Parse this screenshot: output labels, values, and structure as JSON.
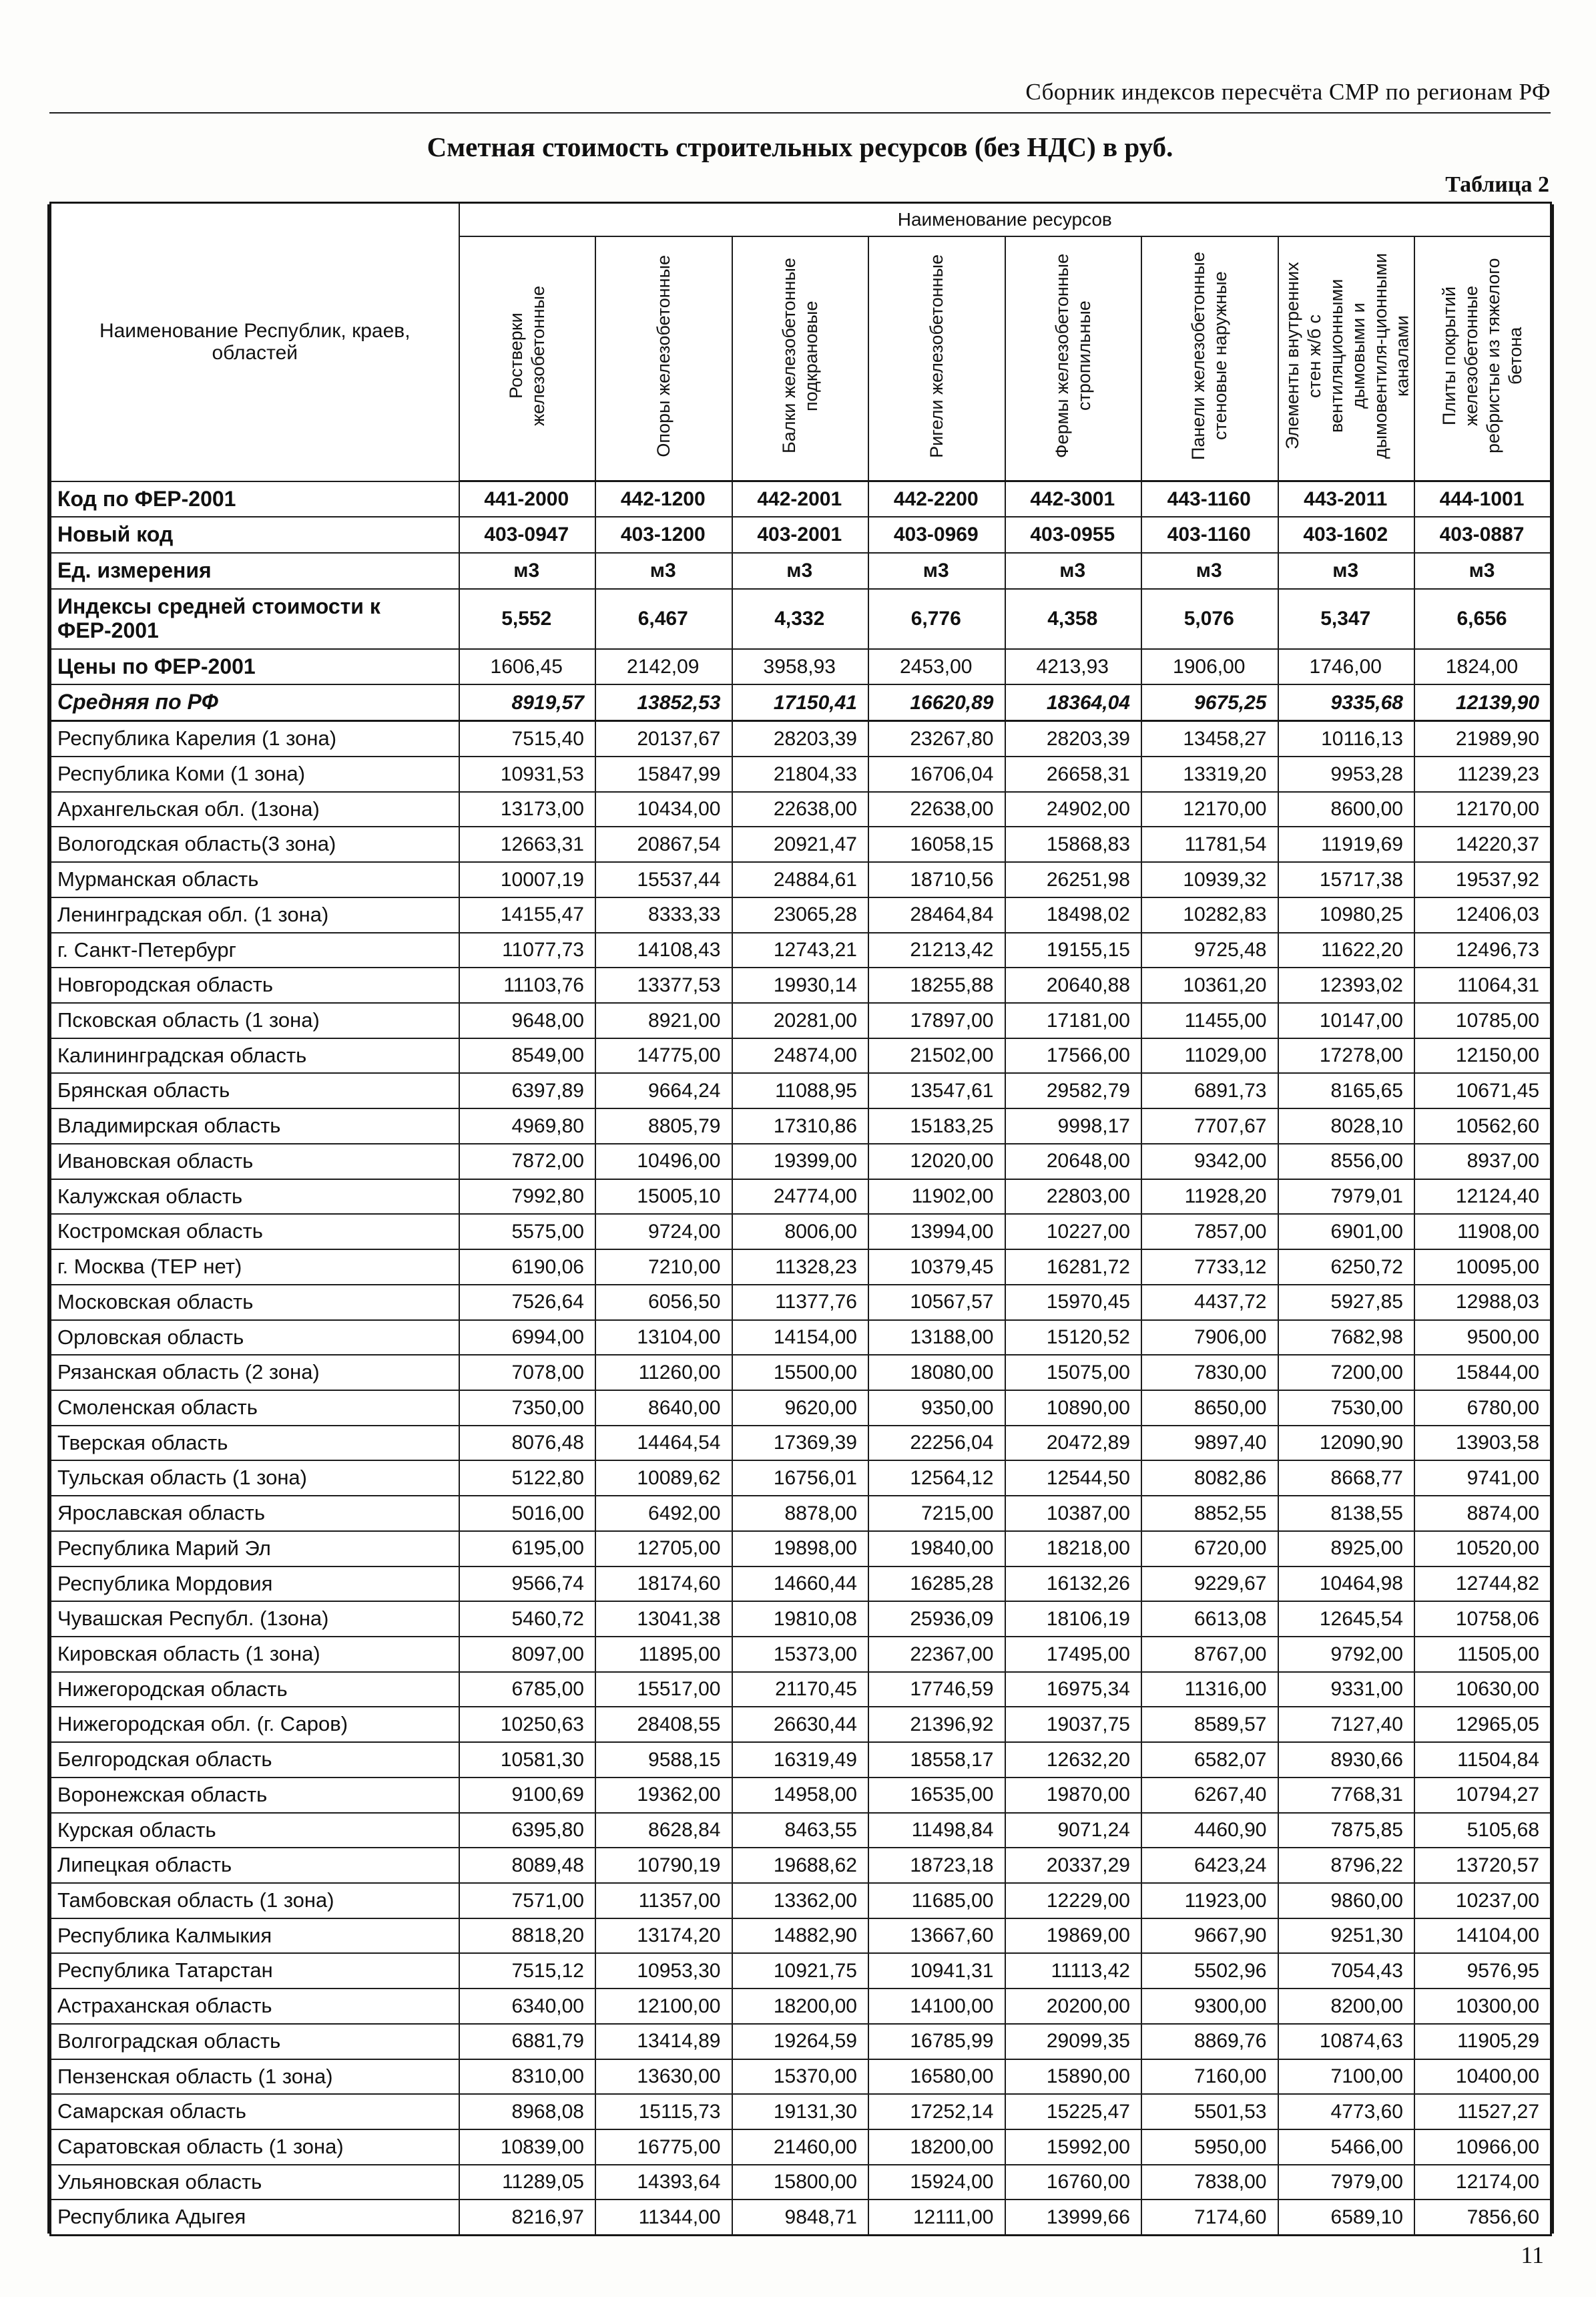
{
  "page": {
    "header": "Сборник индексов пересчёта СМР  по регионам РФ",
    "title": "Сметная стоимость строительных ресурсов (без НДС) в руб.",
    "table_label": "Таблица 2",
    "page_number": "11"
  },
  "table": {
    "group_header": "Наименование ресурсов",
    "corner_header": "Наименование Республик, краев, областей",
    "columns": [
      "Ростверки железобетонные",
      "Опоры железобетонные",
      "Балки железобетонные подкрановые",
      "Ригели железобетонные",
      "Фермы железобетонные стропильные",
      "Панели железобетонные стеновые наружные",
      "Элементы внутренних стен ж/б с вентиляционными дымовыми и дымовентиля-ционными каналами",
      "Плиты покрытий железобетонные ребристые из тяжелого бетона"
    ],
    "meta_rows": [
      {
        "label": "Код по ФЕР-2001",
        "style": "bold",
        "align": "center",
        "values": [
          "441-2000",
          "442-1200",
          "442-2001",
          "442-2200",
          "442-3001",
          "443-1160",
          "443-2011",
          "444-1001"
        ]
      },
      {
        "label": "Новый код",
        "style": "bold",
        "align": "center",
        "values": [
          "403-0947",
          "403-1200",
          "403-2001",
          "403-0969",
          "403-0955",
          "403-1160",
          "403-1602",
          "403-0887"
        ]
      },
      {
        "label": "Ед. измерения",
        "style": "bold",
        "align": "center",
        "values": [
          "м3",
          "м3",
          "м3",
          "м3",
          "м3",
          "м3",
          "м3",
          "м3"
        ]
      },
      {
        "label": "Индексы средней стоимости к ФЕР-2001",
        "style": "bold",
        "align": "center",
        "values": [
          "5,552",
          "6,467",
          "4,332",
          "6,776",
          "4,358",
          "5,076",
          "5,347",
          "6,656"
        ]
      },
      {
        "label": "Цены по ФЕР-2001",
        "style": "bold-label",
        "align": "center",
        "values": [
          "1606,45",
          "2142,09",
          "3958,93",
          "2453,00",
          "4213,93",
          "1906,00",
          "1746,00",
          "1824,00"
        ]
      },
      {
        "label": "Средняя по РФ",
        "style": "bold-italic",
        "align": "right",
        "values": [
          "8919,57",
          "13852,53",
          "17150,41",
          "16620,89",
          "18364,04",
          "9675,25",
          "9335,68",
          "12139,90"
        ]
      }
    ],
    "region_rows": [
      {
        "label": "Республика Карелия (1 зона)",
        "values": [
          "7515,40",
          "20137,67",
          "28203,39",
          "23267,80",
          "28203,39",
          "13458,27",
          "10116,13",
          "21989,90"
        ]
      },
      {
        "label": "Республика Коми (1 зона)",
        "values": [
          "10931,53",
          "15847,99",
          "21804,33",
          "16706,04",
          "26658,31",
          "13319,20",
          "9953,28",
          "11239,23"
        ]
      },
      {
        "label": "Архангельская обл. (1зона)",
        "values": [
          "13173,00",
          "10434,00",
          "22638,00",
          "22638,00",
          "24902,00",
          "12170,00",
          "8600,00",
          "12170,00"
        ]
      },
      {
        "label": "Вологодская область(3 зона)",
        "values": [
          "12663,31",
          "20867,54",
          "20921,47",
          "16058,15",
          "15868,83",
          "11781,54",
          "11919,69",
          "14220,37"
        ]
      },
      {
        "label": "Мурманская область",
        "values": [
          "10007,19",
          "15537,44",
          "24884,61",
          "18710,56",
          "26251,98",
          "10939,32",
          "15717,38",
          "19537,92"
        ]
      },
      {
        "label": "Ленинградская обл. (1 зона)",
        "values": [
          "14155,47",
          "8333,33",
          "23065,28",
          "28464,84",
          "18498,02",
          "10282,83",
          "10980,25",
          "12406,03"
        ]
      },
      {
        "label": "г. Санкт-Петербург",
        "values": [
          "11077,73",
          "14108,43",
          "12743,21",
          "21213,42",
          "19155,15",
          "9725,48",
          "11622,20",
          "12496,73"
        ]
      },
      {
        "label": "Новгородская область",
        "values": [
          "11103,76",
          "13377,53",
          "19930,14",
          "18255,88",
          "20640,88",
          "10361,20",
          "12393,02",
          "11064,31"
        ]
      },
      {
        "label": "Псковская область (1 зона)",
        "values": [
          "9648,00",
          "8921,00",
          "20281,00",
          "17897,00",
          "17181,00",
          "11455,00",
          "10147,00",
          "10785,00"
        ]
      },
      {
        "label": "Калининградская область",
        "values": [
          "8549,00",
          "14775,00",
          "24874,00",
          "21502,00",
          "17566,00",
          "11029,00",
          "17278,00",
          "12150,00"
        ]
      },
      {
        "label": "Брянская область",
        "values": [
          "6397,89",
          "9664,24",
          "11088,95",
          "13547,61",
          "29582,79",
          "6891,73",
          "8165,65",
          "10671,45"
        ]
      },
      {
        "label": "Владимирская область",
        "values": [
          "4969,80",
          "8805,79",
          "17310,86",
          "15183,25",
          "9998,17",
          "7707,67",
          "8028,10",
          "10562,60"
        ]
      },
      {
        "label": "Ивановская область",
        "values": [
          "7872,00",
          "10496,00",
          "19399,00",
          "12020,00",
          "20648,00",
          "9342,00",
          "8556,00",
          "8937,00"
        ]
      },
      {
        "label": "Калужская область",
        "values": [
          "7992,80",
          "15005,10",
          "24774,00",
          "11902,00",
          "22803,00",
          "11928,20",
          "7979,01",
          "12124,40"
        ]
      },
      {
        "label": "Костромская область",
        "values": [
          "5575,00",
          "9724,00",
          "8006,00",
          "13994,00",
          "10227,00",
          "7857,00",
          "6901,00",
          "11908,00"
        ]
      },
      {
        "label": "г. Москва (ТЕР нет)",
        "values": [
          "6190,06",
          "7210,00",
          "11328,23",
          "10379,45",
          "16281,72",
          "7733,12",
          "6250,72",
          "10095,00"
        ]
      },
      {
        "label": "Московская  область",
        "values": [
          "7526,64",
          "6056,50",
          "11377,76",
          "10567,57",
          "15970,45",
          "4437,72",
          "5927,85",
          "12988,03"
        ]
      },
      {
        "label": "Орловская область",
        "values": [
          "6994,00",
          "13104,00",
          "14154,00",
          "13188,00",
          "15120,52",
          "7906,00",
          "7682,98",
          "9500,00"
        ]
      },
      {
        "label": "Рязанская область (2 зона)",
        "values": [
          "7078,00",
          "11260,00",
          "15500,00",
          "18080,00",
          "15075,00",
          "7830,00",
          "7200,00",
          "15844,00"
        ]
      },
      {
        "label": "Смоленская область",
        "values": [
          "7350,00",
          "8640,00",
          "9620,00",
          "9350,00",
          "10890,00",
          "8650,00",
          "7530,00",
          "6780,00"
        ]
      },
      {
        "label": "Тверская область",
        "values": [
          "8076,48",
          "14464,54",
          "17369,39",
          "22256,04",
          "20472,89",
          "9897,40",
          "12090,90",
          "13903,58"
        ]
      },
      {
        "label": "Тульская область (1 зона)",
        "values": [
          "5122,80",
          "10089,62",
          "16756,01",
          "12564,12",
          "12544,50",
          "8082,86",
          "8668,77",
          "9741,00"
        ]
      },
      {
        "label": "Ярославская область",
        "values": [
          "5016,00",
          "6492,00",
          "8878,00",
          "7215,00",
          "10387,00",
          "8852,55",
          "8138,55",
          "8874,00"
        ]
      },
      {
        "label": "Республика Марий Эл",
        "values": [
          "6195,00",
          "12705,00",
          "19898,00",
          "19840,00",
          "18218,00",
          "6720,00",
          "8925,00",
          "10520,00"
        ]
      },
      {
        "label": "Республика Мордовия",
        "values": [
          "9566,74",
          "18174,60",
          "14660,44",
          "16285,28",
          "16132,26",
          "9229,67",
          "10464,98",
          "12744,82"
        ]
      },
      {
        "label": "Чувашская Республ. (1зона)",
        "values": [
          "5460,72",
          "13041,38",
          "19810,08",
          "25936,09",
          "18106,19",
          "6613,08",
          "12645,54",
          "10758,06"
        ]
      },
      {
        "label": "Кировская область (1 зона)",
        "values": [
          "8097,00",
          "11895,00",
          "15373,00",
          "22367,00",
          "17495,00",
          "8767,00",
          "9792,00",
          "11505,00"
        ]
      },
      {
        "label": "Нижегородская область",
        "values": [
          "6785,00",
          "15517,00",
          "21170,45",
          "17746,59",
          "16975,34",
          "11316,00",
          "9331,00",
          "10630,00"
        ]
      },
      {
        "label": "Нижегородская обл. (г. Саров)",
        "values": [
          "10250,63",
          "28408,55",
          "26630,44",
          "21396,92",
          "19037,75",
          "8589,57",
          "7127,40",
          "12965,05"
        ]
      },
      {
        "label": "Белгородская область",
        "values": [
          "10581,30",
          "9588,15",
          "16319,49",
          "18558,17",
          "12632,20",
          "6582,07",
          "8930,66",
          "11504,84"
        ]
      },
      {
        "label": "Воронежская область",
        "values": [
          "9100,69",
          "19362,00",
          "14958,00",
          "16535,00",
          "19870,00",
          "6267,40",
          "7768,31",
          "10794,27"
        ]
      },
      {
        "label": "Курская область",
        "values": [
          "6395,80",
          "8628,84",
          "8463,55",
          "11498,84",
          "9071,24",
          "4460,90",
          "7875,85",
          "5105,68"
        ]
      },
      {
        "label": "Липецкая область",
        "values": [
          "8089,48",
          "10790,19",
          "19688,62",
          "18723,18",
          "20337,29",
          "6423,24",
          "8796,22",
          "13720,57"
        ]
      },
      {
        "label": "Тамбовская область (1 зона)",
        "values": [
          "7571,00",
          "11357,00",
          "13362,00",
          "11685,00",
          "12229,00",
          "11923,00",
          "9860,00",
          "10237,00"
        ]
      },
      {
        "label": "Республика Калмыкия",
        "values": [
          "8818,20",
          "13174,20",
          "14882,90",
          "13667,60",
          "19869,00",
          "9667,90",
          "9251,30",
          "14104,00"
        ]
      },
      {
        "label": "Республика Татарстан",
        "values": [
          "7515,12",
          "10953,30",
          "10921,75",
          "10941,31",
          "11113,42",
          "5502,96",
          "7054,43",
          "9576,95"
        ]
      },
      {
        "label": "Астраханская область",
        "values": [
          "6340,00",
          "12100,00",
          "18200,00",
          "14100,00",
          "20200,00",
          "9300,00",
          "8200,00",
          "10300,00"
        ]
      },
      {
        "label": "Волгоградская область",
        "values": [
          "6881,79",
          "13414,89",
          "19264,59",
          "16785,99",
          "29099,35",
          "8869,76",
          "10874,63",
          "11905,29"
        ]
      },
      {
        "label": "Пензенская область (1 зона)",
        "values": [
          "8310,00",
          "13630,00",
          "15370,00",
          "16580,00",
          "15890,00",
          "7160,00",
          "7100,00",
          "10400,00"
        ]
      },
      {
        "label": "Самарская область",
        "values": [
          "8968,08",
          "15115,73",
          "19131,30",
          "17252,14",
          "15225,47",
          "5501,53",
          "4773,60",
          "11527,27"
        ]
      },
      {
        "label": "Саратовская область (1 зона)",
        "values": [
          "10839,00",
          "16775,00",
          "21460,00",
          "18200,00",
          "15992,00",
          "5950,00",
          "5466,00",
          "10966,00"
        ]
      },
      {
        "label": "Ульяновская область",
        "values": [
          "11289,05",
          "14393,64",
          "15800,00",
          "15924,00",
          "16760,00",
          "7838,00",
          "7979,00",
          "12174,00"
        ]
      },
      {
        "label": "Республика Адыгея",
        "values": [
          "8216,97",
          "11344,00",
          "9848,71",
          "12111,00",
          "13999,66",
          "7174,60",
          "6589,10",
          "7856,60"
        ]
      }
    ]
  }
}
